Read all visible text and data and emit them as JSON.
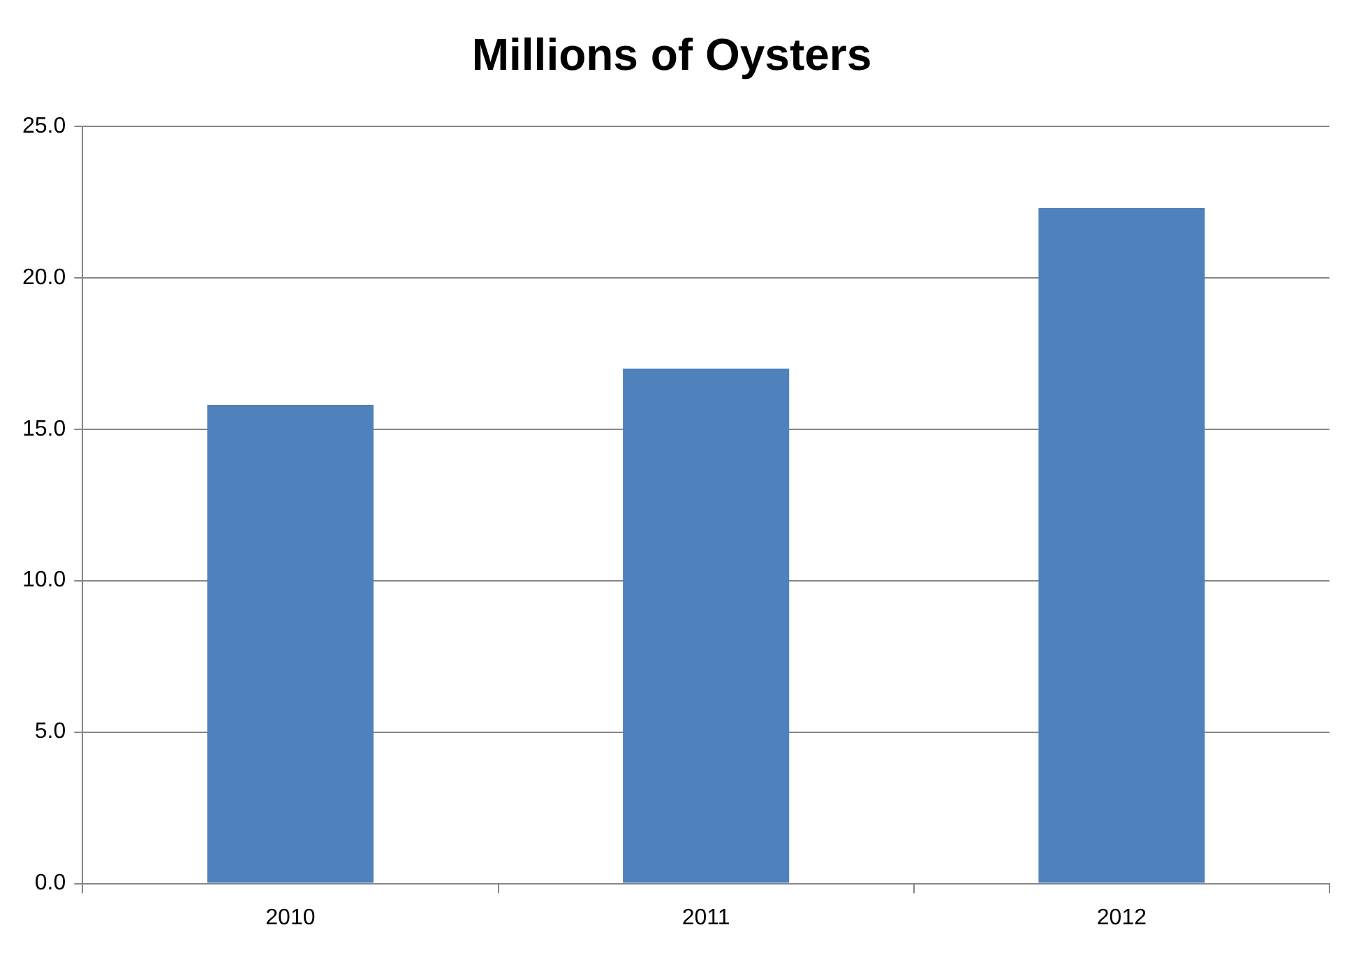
{
  "chart_data": {
    "type": "bar",
    "title": "Millions of Oysters",
    "categories": [
      "2010",
      "2011",
      "2012"
    ],
    "values": [
      15.8,
      17.0,
      22.3
    ],
    "color": "#4f81bd",
    "ylim": [
      0,
      25
    ],
    "yticks": [
      {
        "value": 0,
        "label": "0.0"
      },
      {
        "value": 5,
        "label": "5.0"
      },
      {
        "value": 10,
        "label": "10.0"
      },
      {
        "value": 15,
        "label": "15.0"
      },
      {
        "value": 20,
        "label": "20.0"
      },
      {
        "value": 25,
        "label": "25.0"
      }
    ],
    "grid": "y",
    "legend": false
  }
}
